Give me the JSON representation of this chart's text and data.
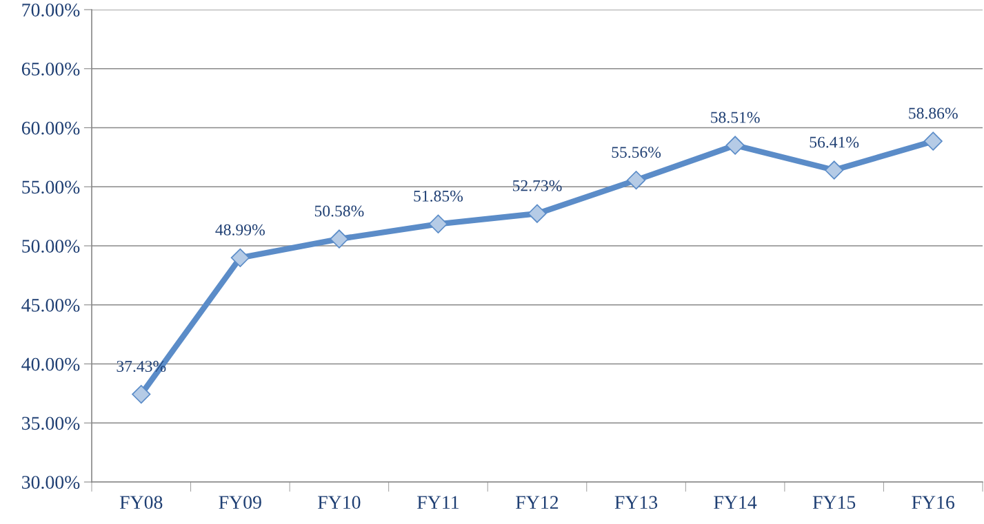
{
  "chart_data": {
    "type": "line",
    "categories": [
      "FY08",
      "FY09",
      "FY10",
      "FY11",
      "FY12",
      "FY13",
      "FY14",
      "FY15",
      "FY16"
    ],
    "series": [
      {
        "color": "#5b8cc8",
        "values": [
          37.43,
          48.99,
          50.58,
          51.85,
          52.73,
          55.56,
          58.51,
          56.41,
          58.86
        ],
        "value_labels": [
          "37.43%",
          "48.99%",
          "50.58%",
          "51.85%",
          "52.73%",
          "55.56%",
          "58.51%",
          "56.41%",
          "58.86%"
        ]
      }
    ],
    "ylim": [
      30,
      70
    ],
    "yticks": [
      {
        "value": 30,
        "label": "30.00%"
      },
      {
        "value": 35,
        "label": "35.00%"
      },
      {
        "value": 40,
        "label": "40.00%"
      },
      {
        "value": 45,
        "label": "45.00%"
      },
      {
        "value": 50,
        "label": "50.00%"
      },
      {
        "value": 55,
        "label": "55.00%"
      },
      {
        "value": 60,
        "label": "60.00%"
      },
      {
        "value": 65,
        "label": "65.00%"
      },
      {
        "value": 70,
        "label": "70.00%"
      }
    ],
    "grid": "y",
    "marker": "diamond",
    "line_style": "solid"
  }
}
